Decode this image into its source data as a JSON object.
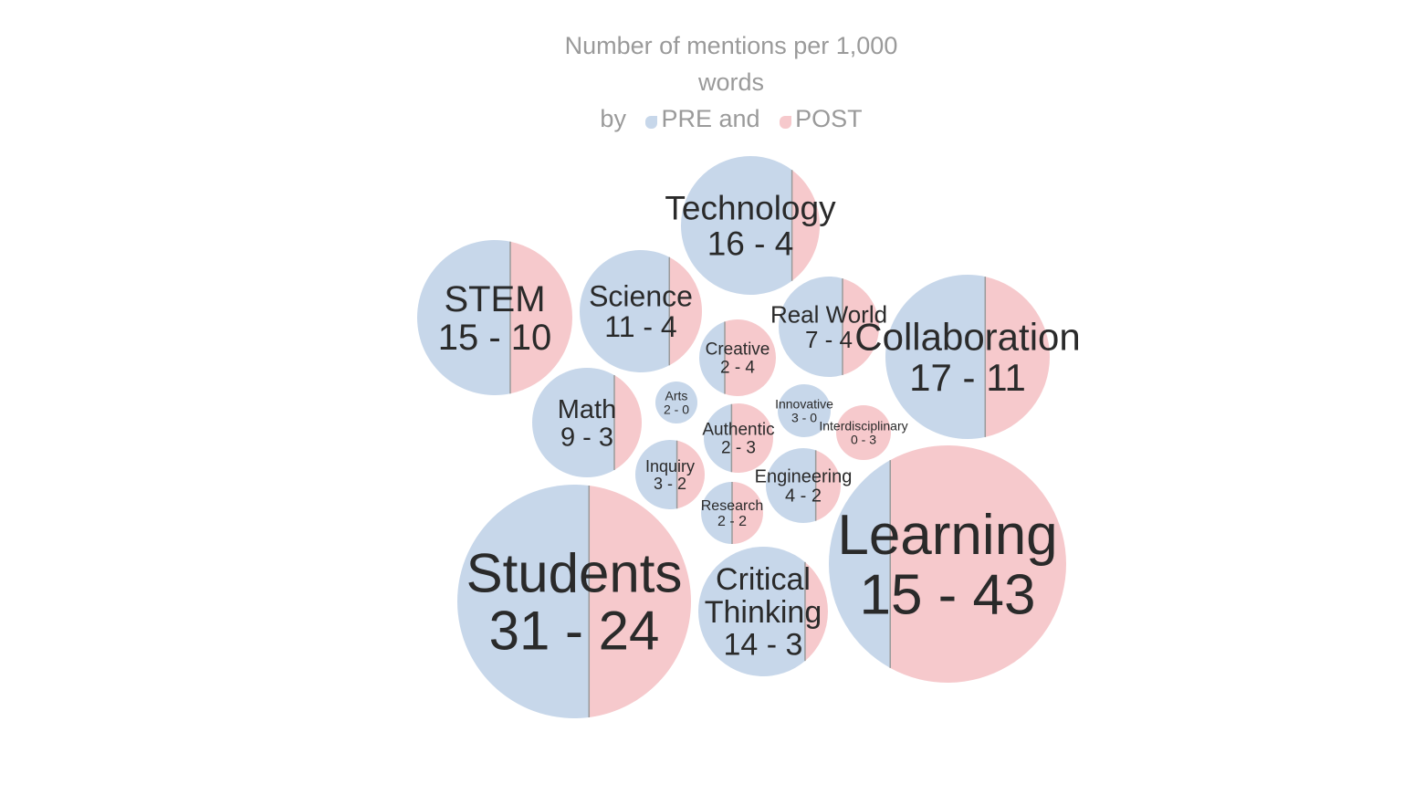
{
  "chart_data": {
    "type": "bubble",
    "title_lines": [
      "Number of mentions per 1,000",
      "words"
    ],
    "legend": {
      "prefix": "by",
      "items": [
        {
          "label": "PRE and",
          "color": "#c7d7ea"
        },
        {
          "label": "POST",
          "color": "#f6c9cc"
        }
      ]
    },
    "colors": {
      "pre": "#c7d7ea",
      "post": "#f6c9cc",
      "divider": "#9a9a9a"
    },
    "series": [
      {
        "name": "PRE",
        "color": "#c7d7ea"
      },
      {
        "name": "POST",
        "color": "#f6c9cc"
      }
    ],
    "items": [
      {
        "label": [
          "Technology"
        ],
        "pre": 16,
        "post": 4,
        "value_text": "16 - 4"
      },
      {
        "label": [
          "STEM"
        ],
        "pre": 15,
        "post": 10,
        "value_text": "15 - 10"
      },
      {
        "label": [
          "Science"
        ],
        "pre": 11,
        "post": 4,
        "value_text": "11 - 4"
      },
      {
        "label": [
          "Real World"
        ],
        "pre": 7,
        "post": 4,
        "value_text": "7 - 4"
      },
      {
        "label": [
          "Collaboration"
        ],
        "pre": 17,
        "post": 11,
        "value_text": "17 - 11"
      },
      {
        "label": [
          "Creative"
        ],
        "pre": 2,
        "post": 4,
        "value_text": "2 - 4"
      },
      {
        "label": [
          "Math"
        ],
        "pre": 9,
        "post": 3,
        "value_text": "9 - 3"
      },
      {
        "label": [
          "Arts"
        ],
        "pre": 2,
        "post": 0,
        "value_text": "2 - 0"
      },
      {
        "label": [
          "Innovative"
        ],
        "pre": 3,
        "post": 0,
        "value_text": "3 - 0"
      },
      {
        "label": [
          "Interdisciplinary"
        ],
        "pre": 0,
        "post": 3,
        "value_text": "0 - 3"
      },
      {
        "label": [
          "Authentic"
        ],
        "pre": 2,
        "post": 3,
        "value_text": "2 - 3"
      },
      {
        "label": [
          "Inquiry"
        ],
        "pre": 3,
        "post": 2,
        "value_text": "3 - 2"
      },
      {
        "label": [
          "Engineering"
        ],
        "pre": 4,
        "post": 2,
        "value_text": "4 - 2"
      },
      {
        "label": [
          "Research"
        ],
        "pre": 2,
        "post": 2,
        "value_text": "2 - 2"
      },
      {
        "label": [
          "Students"
        ],
        "pre": 31,
        "post": 24,
        "value_text": "31 - 24"
      },
      {
        "label": [
          "Learning"
        ],
        "pre": 15,
        "post": 43,
        "value_text": "15 - 43"
      },
      {
        "label": [
          "Critical",
          "Thinking"
        ],
        "pre": 14,
        "post": 3,
        "value_text": "14 - 3"
      }
    ]
  }
}
